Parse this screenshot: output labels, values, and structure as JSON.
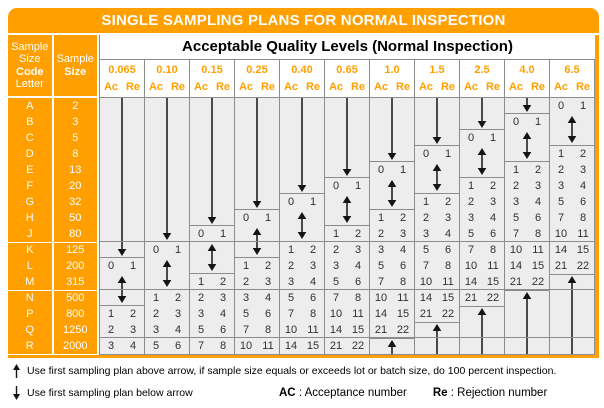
{
  "title": "SINGLE SAMPLING PLANS FOR NORMAL INSPECTION",
  "header": {
    "code_letter_lines": [
      "Sample",
      "Size",
      "Code",
      "Letter"
    ],
    "sample_size_lines": [
      "Sample",
      "Size"
    ],
    "aql_title": "Acceptable Quality Levels (Normal Inspection)",
    "ac_label": "Ac",
    "re_label": "Re"
  },
  "rows": [
    {
      "letter": "A",
      "size": "2"
    },
    {
      "letter": "B",
      "size": "3"
    },
    {
      "letter": "C",
      "size": "5"
    },
    {
      "letter": "D",
      "size": "8"
    },
    {
      "letter": "E",
      "size": "13"
    },
    {
      "letter": "F",
      "size": "20"
    },
    {
      "letter": "G",
      "size": "32"
    },
    {
      "letter": "H",
      "size": "50"
    },
    {
      "letter": "J",
      "size": "80"
    },
    {
      "letter": "K",
      "size": "125"
    },
    {
      "letter": "L",
      "size": "200"
    },
    {
      "letter": "M",
      "size": "315"
    },
    {
      "letter": "N",
      "size": "500"
    },
    {
      "letter": "P",
      "size": "800"
    },
    {
      "letter": "Q",
      "size": "1250"
    },
    {
      "letter": "R",
      "size": "2000"
    }
  ],
  "orange_group_breaks": [
    9,
    12
  ],
  "data_group_breaks": [
    9,
    12,
    15
  ],
  "arrow_meanings": {
    "down": "use-first-sampling-plan-below-arrow",
    "up": "use-first-sampling-plan-above-arrow",
    "dbl": "double-arrow"
  },
  "columns": [
    {
      "aql": "0.065",
      "segments": [
        {
          "type": "down",
          "span": 10
        },
        {
          "type": "val",
          "ac": "0",
          "re": "1"
        },
        {
          "type": "dbl",
          "span": 2
        },
        {
          "type": "val",
          "ac": "1",
          "re": "2"
        },
        {
          "type": "val",
          "ac": "2",
          "re": "3"
        },
        {
          "type": "val",
          "ac": "3",
          "re": "4"
        }
      ]
    },
    {
      "aql": "0.10",
      "segments": [
        {
          "type": "down",
          "span": 9
        },
        {
          "type": "val",
          "ac": "0",
          "re": "1"
        },
        {
          "type": "dbl",
          "span": 2
        },
        {
          "type": "val",
          "ac": "1",
          "re": "2"
        },
        {
          "type": "val",
          "ac": "2",
          "re": "3"
        },
        {
          "type": "val",
          "ac": "3",
          "re": "4"
        },
        {
          "type": "val",
          "ac": "5",
          "re": "6"
        }
      ]
    },
    {
      "aql": "0.15",
      "segments": [
        {
          "type": "down",
          "span": 8
        },
        {
          "type": "val",
          "ac": "0",
          "re": "1"
        },
        {
          "type": "dbl",
          "span": 2
        },
        {
          "type": "val",
          "ac": "1",
          "re": "2"
        },
        {
          "type": "val",
          "ac": "2",
          "re": "3"
        },
        {
          "type": "val",
          "ac": "3",
          "re": "4"
        },
        {
          "type": "val",
          "ac": "5",
          "re": "6"
        },
        {
          "type": "val",
          "ac": "7",
          "re": "8"
        }
      ]
    },
    {
      "aql": "0.25",
      "segments": [
        {
          "type": "down",
          "span": 7
        },
        {
          "type": "val",
          "ac": "0",
          "re": "1"
        },
        {
          "type": "dbl",
          "span": 2
        },
        {
          "type": "val",
          "ac": "1",
          "re": "2"
        },
        {
          "type": "val",
          "ac": "2",
          "re": "3"
        },
        {
          "type": "val",
          "ac": "3",
          "re": "4"
        },
        {
          "type": "val",
          "ac": "5",
          "re": "6"
        },
        {
          "type": "val",
          "ac": "7",
          "re": "8"
        },
        {
          "type": "val",
          "ac": "10",
          "re": "11"
        }
      ]
    },
    {
      "aql": "0.40",
      "segments": [
        {
          "type": "down",
          "span": 6
        },
        {
          "type": "val",
          "ac": "0",
          "re": "1"
        },
        {
          "type": "dbl",
          "span": 2
        },
        {
          "type": "val",
          "ac": "1",
          "re": "2"
        },
        {
          "type": "val",
          "ac": "2",
          "re": "3"
        },
        {
          "type": "val",
          "ac": "3",
          "re": "4"
        },
        {
          "type": "val",
          "ac": "5",
          "re": "6"
        },
        {
          "type": "val",
          "ac": "7",
          "re": "8"
        },
        {
          "type": "val",
          "ac": "10",
          "re": "11"
        },
        {
          "type": "val",
          "ac": "14",
          "re": "15"
        }
      ]
    },
    {
      "aql": "0.65",
      "segments": [
        {
          "type": "down",
          "span": 5
        },
        {
          "type": "val",
          "ac": "0",
          "re": "1"
        },
        {
          "type": "dbl",
          "span": 2
        },
        {
          "type": "val",
          "ac": "1",
          "re": "2"
        },
        {
          "type": "val",
          "ac": "2",
          "re": "3"
        },
        {
          "type": "val",
          "ac": "3",
          "re": "4"
        },
        {
          "type": "val",
          "ac": "5",
          "re": "6"
        },
        {
          "type": "val",
          "ac": "7",
          "re": "8"
        },
        {
          "type": "val",
          "ac": "10",
          "re": "11"
        },
        {
          "type": "val",
          "ac": "14",
          "re": "15"
        },
        {
          "type": "val",
          "ac": "21",
          "re": "22"
        }
      ]
    },
    {
      "aql": "1.0",
      "segments": [
        {
          "type": "down",
          "span": 4
        },
        {
          "type": "val",
          "ac": "0",
          "re": "1"
        },
        {
          "type": "dbl",
          "span": 2
        },
        {
          "type": "val",
          "ac": "1",
          "re": "2"
        },
        {
          "type": "val",
          "ac": "2",
          "re": "3"
        },
        {
          "type": "val",
          "ac": "3",
          "re": "4"
        },
        {
          "type": "val",
          "ac": "5",
          "re": "6"
        },
        {
          "type": "val",
          "ac": "7",
          "re": "8"
        },
        {
          "type": "val",
          "ac": "10",
          "re": "11"
        },
        {
          "type": "val",
          "ac": "14",
          "re": "15"
        },
        {
          "type": "val",
          "ac": "21",
          "re": "22"
        },
        {
          "type": "up",
          "span": 1
        }
      ]
    },
    {
      "aql": "1.5",
      "segments": [
        {
          "type": "down",
          "span": 3
        },
        {
          "type": "val",
          "ac": "0",
          "re": "1"
        },
        {
          "type": "dbl",
          "span": 2
        },
        {
          "type": "val",
          "ac": "1",
          "re": "2"
        },
        {
          "type": "val",
          "ac": "2",
          "re": "3"
        },
        {
          "type": "val",
          "ac": "3",
          "re": "4"
        },
        {
          "type": "val",
          "ac": "5",
          "re": "6"
        },
        {
          "type": "val",
          "ac": "7",
          "re": "8"
        },
        {
          "type": "val",
          "ac": "10",
          "re": "11"
        },
        {
          "type": "val",
          "ac": "14",
          "re": "15"
        },
        {
          "type": "val",
          "ac": "21",
          "re": "22"
        },
        {
          "type": "up",
          "span": 2
        }
      ]
    },
    {
      "aql": "2.5",
      "segments": [
        {
          "type": "down",
          "span": 2
        },
        {
          "type": "val",
          "ac": "0",
          "re": "1"
        },
        {
          "type": "dbl",
          "span": 2
        },
        {
          "type": "val",
          "ac": "1",
          "re": "2"
        },
        {
          "type": "val",
          "ac": "2",
          "re": "3"
        },
        {
          "type": "val",
          "ac": "3",
          "re": "4"
        },
        {
          "type": "val",
          "ac": "5",
          "re": "6"
        },
        {
          "type": "val",
          "ac": "7",
          "re": "8"
        },
        {
          "type": "val",
          "ac": "10",
          "re": "11"
        },
        {
          "type": "val",
          "ac": "14",
          "re": "15"
        },
        {
          "type": "val",
          "ac": "21",
          "re": "22"
        },
        {
          "type": "up",
          "span": 3
        }
      ]
    },
    {
      "aql": "4.0",
      "segments": [
        {
          "type": "down",
          "span": 1
        },
        {
          "type": "val",
          "ac": "0",
          "re": "1"
        },
        {
          "type": "dbl",
          "span": 2
        },
        {
          "type": "val",
          "ac": "1",
          "re": "2"
        },
        {
          "type": "val",
          "ac": "2",
          "re": "3"
        },
        {
          "type": "val",
          "ac": "3",
          "re": "4"
        },
        {
          "type": "val",
          "ac": "5",
          "re": "6"
        },
        {
          "type": "val",
          "ac": "7",
          "re": "8"
        },
        {
          "type": "val",
          "ac": "10",
          "re": "11"
        },
        {
          "type": "val",
          "ac": "14",
          "re": "15"
        },
        {
          "type": "val",
          "ac": "21",
          "re": "22"
        },
        {
          "type": "up",
          "span": 4
        }
      ]
    },
    {
      "aql": "6.5",
      "segments": [
        {
          "type": "val",
          "ac": "0",
          "re": "1"
        },
        {
          "type": "dbl",
          "span": 2
        },
        {
          "type": "val",
          "ac": "1",
          "re": "2"
        },
        {
          "type": "val",
          "ac": "2",
          "re": "3"
        },
        {
          "type": "val",
          "ac": "3",
          "re": "4"
        },
        {
          "type": "val",
          "ac": "5",
          "re": "6"
        },
        {
          "type": "val",
          "ac": "7",
          "re": "8"
        },
        {
          "type": "val",
          "ac": "10",
          "re": "11"
        },
        {
          "type": "val",
          "ac": "14",
          "re": "15"
        },
        {
          "type": "val",
          "ac": "21",
          "re": "22"
        },
        {
          "type": "up",
          "span": 5
        }
      ]
    }
  ],
  "footer": {
    "up_note": "Use first sampling plan above arrow, if sample size equals or exceeds lot or batch size, do 100 percent inspection.",
    "down_note": "Use first sampling plan below arrow",
    "ac_abbr": "AC",
    "ac_rest": " : Acceptance number",
    "re_abbr": "Re",
    "re_rest": " : Rejection number"
  },
  "colors": {
    "orange": "#FF9F00",
    "grid_line": "#8c8c8c",
    "data_bg": "#EDEDED",
    "value_text": "#303030",
    "arrow": "#141414",
    "header_text_white": "#FFFFFF"
  }
}
